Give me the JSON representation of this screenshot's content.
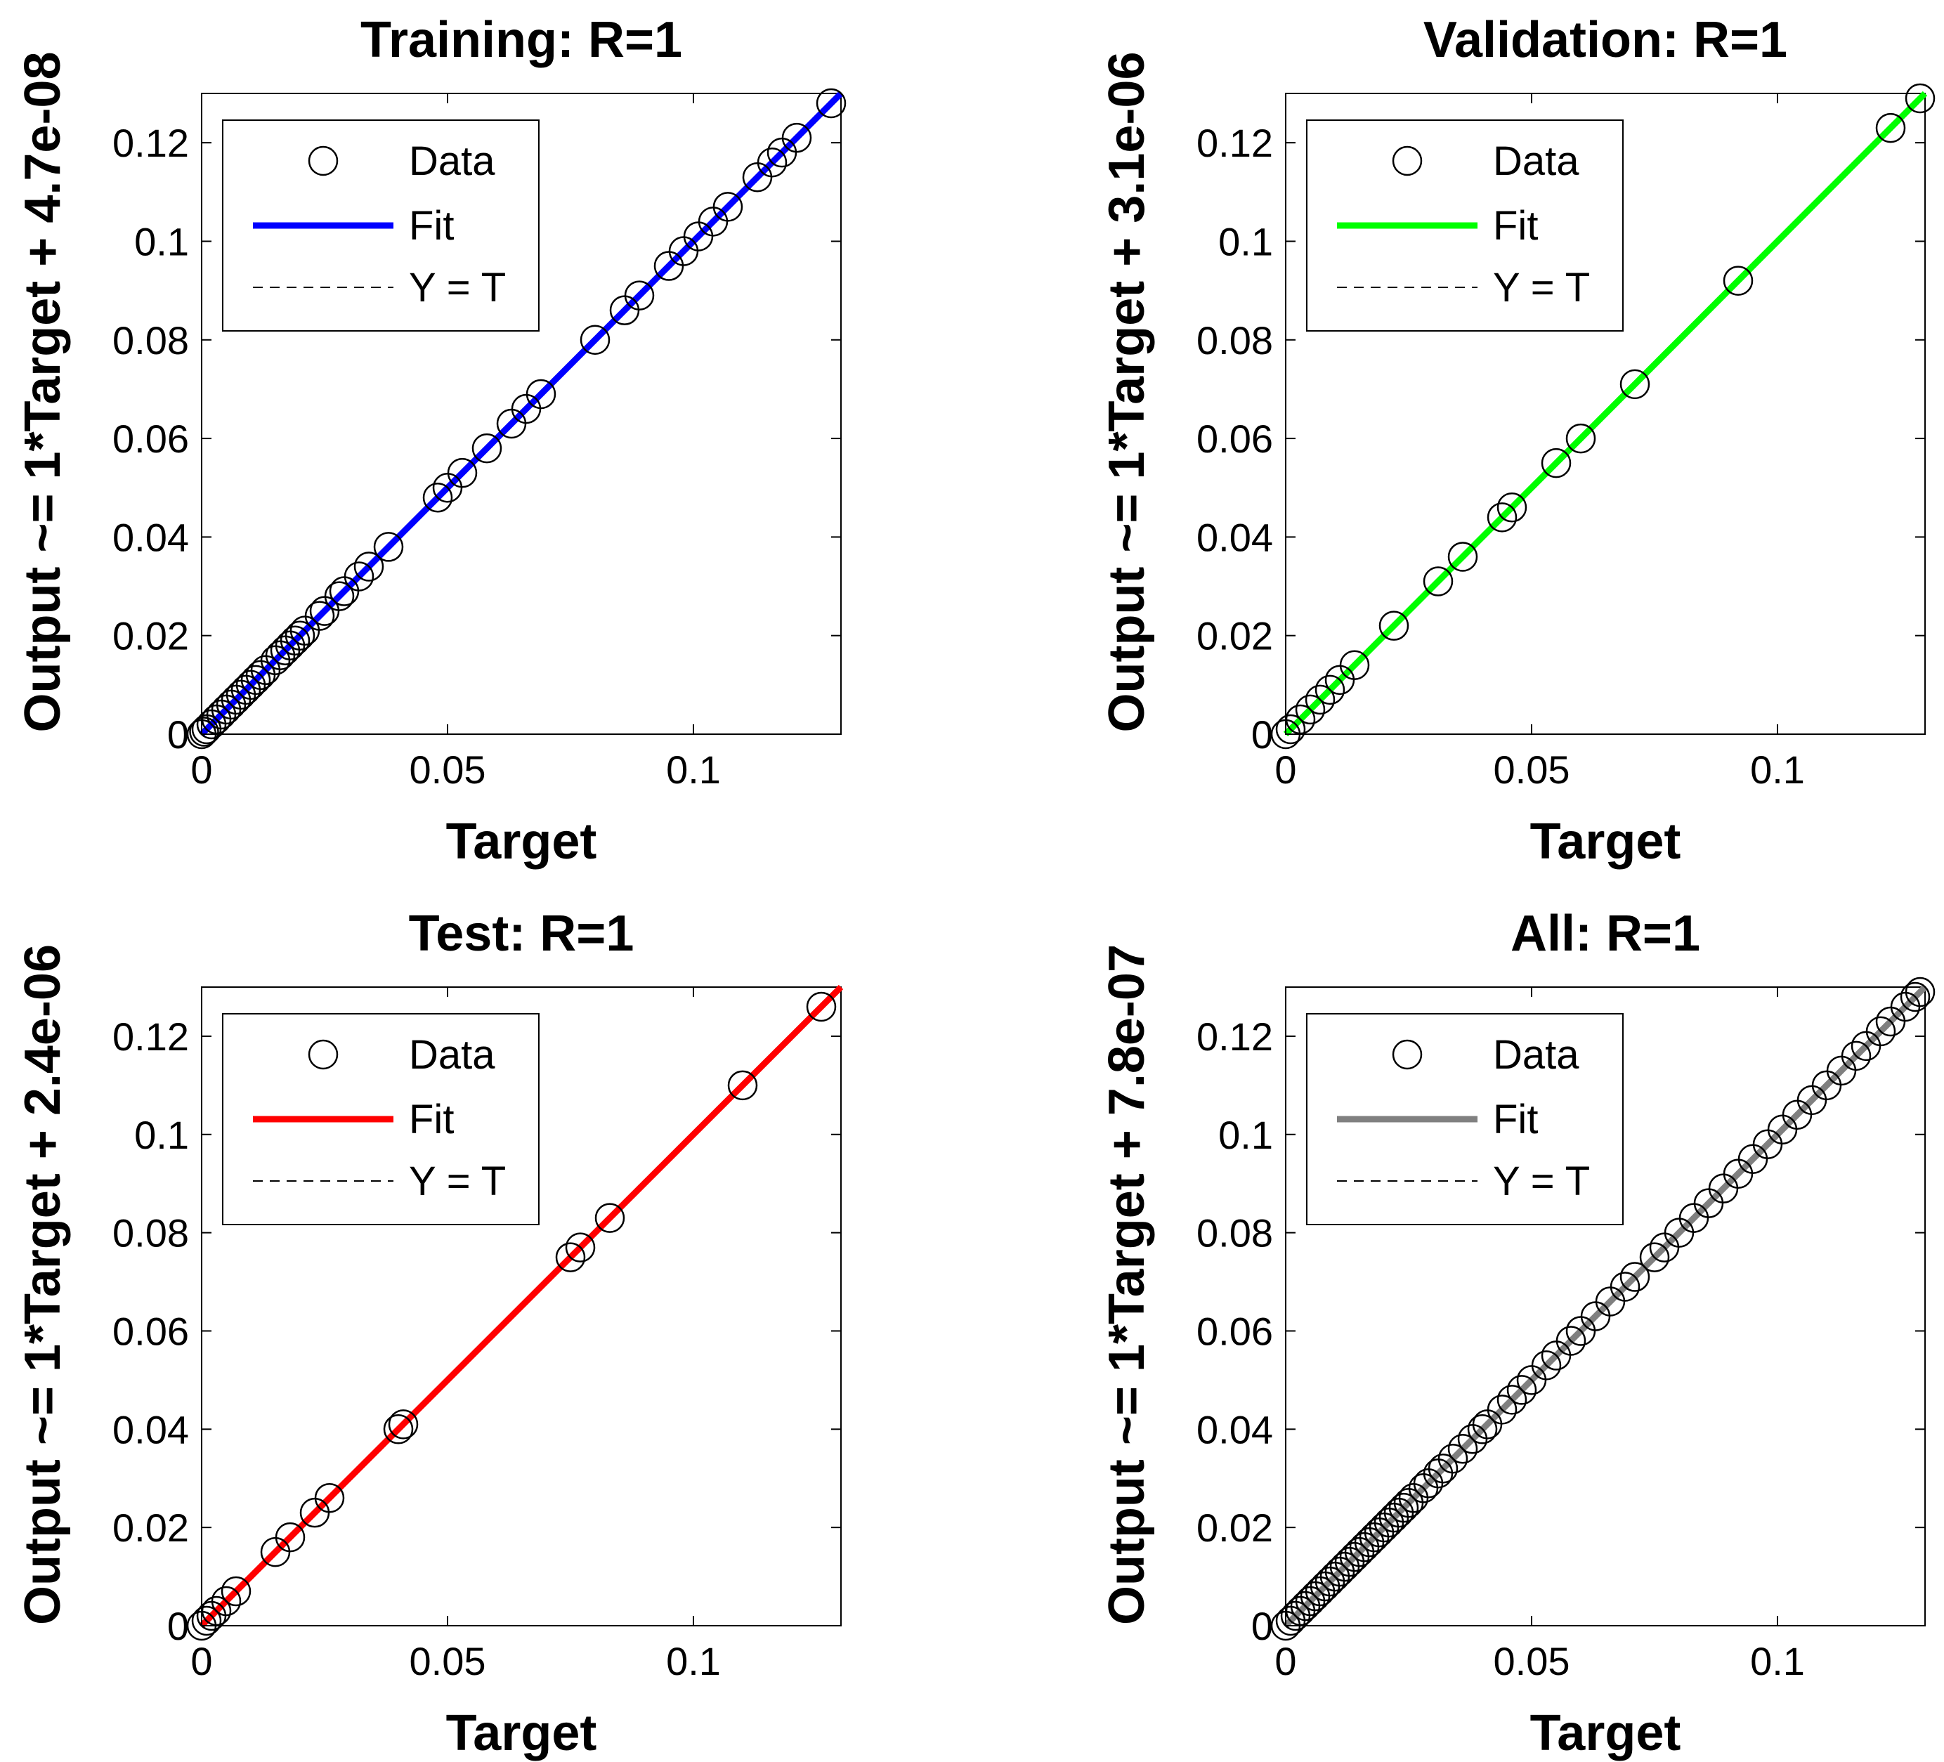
{
  "chart_data": [
    {
      "type": "scatter",
      "title": "Training: R=1",
      "xlabel": "Target",
      "ylabel": "Output ~= 1*Target + 4.7e-08",
      "xlim": [
        0,
        0.13
      ],
      "ylim": [
        0,
        0.13
      ],
      "xticks": [
        "0",
        "0.05",
        "0.1"
      ],
      "yticks": [
        "0",
        "0.02",
        "0.04",
        "0.06",
        "0.08",
        "0.1",
        "0.12"
      ],
      "fit_color": "#0000ff",
      "legend": {
        "position": "top-left",
        "entries": [
          "Data",
          "Fit",
          "Y = T"
        ]
      },
      "grid": false,
      "fit": {
        "slope": 1,
        "intercept": 4.7e-08
      },
      "series": [
        {
          "name": "Data",
          "x": [
            0,
            0.0005,
            0.001,
            0.002,
            0.003,
            0.004,
            0.005,
            0.006,
            0.007,
            0.008,
            0.009,
            0.01,
            0.011,
            0.012,
            0.013,
            0.015,
            0.016,
            0.017,
            0.018,
            0.019,
            0.02,
            0.021,
            0.024,
            0.025,
            0.028,
            0.029,
            0.032,
            0.034,
            0.038,
            0.048,
            0.05,
            0.053,
            0.058,
            0.063,
            0.066,
            0.069,
            0.08,
            0.086,
            0.089,
            0.095,
            0.098,
            0.101,
            0.104,
            0.107,
            0.113,
            0.116,
            0.118,
            0.121,
            0.128
          ],
          "y": [
            0,
            0.0005,
            0.001,
            0.002,
            0.003,
            0.004,
            0.005,
            0.006,
            0.007,
            0.008,
            0.009,
            0.01,
            0.011,
            0.012,
            0.013,
            0.015,
            0.016,
            0.017,
            0.018,
            0.019,
            0.02,
            0.021,
            0.024,
            0.025,
            0.028,
            0.029,
            0.032,
            0.034,
            0.038,
            0.048,
            0.05,
            0.053,
            0.058,
            0.063,
            0.066,
            0.069,
            0.08,
            0.086,
            0.089,
            0.095,
            0.098,
            0.101,
            0.104,
            0.107,
            0.113,
            0.116,
            0.118,
            0.121,
            0.128
          ]
        }
      ]
    },
    {
      "type": "scatter",
      "title": "Validation: R=1",
      "xlabel": "Target",
      "ylabel": "Output ~= 1*Target + 3.1e-06",
      "xlim": [
        0,
        0.13
      ],
      "ylim": [
        0,
        0.13
      ],
      "xticks": [
        "0",
        "0.05",
        "0.1"
      ],
      "yticks": [
        "0",
        "0.02",
        "0.04",
        "0.06",
        "0.08",
        "0.1",
        "0.12"
      ],
      "fit_color": "#00ff00",
      "legend": {
        "position": "top-left",
        "entries": [
          "Data",
          "Fit",
          "Y = T"
        ]
      },
      "grid": false,
      "fit": {
        "slope": 1,
        "intercept": 3.1e-06
      },
      "series": [
        {
          "name": "Data",
          "x": [
            0,
            0.001,
            0.003,
            0.005,
            0.007,
            0.009,
            0.011,
            0.014,
            0.022,
            0.031,
            0.036,
            0.044,
            0.046,
            0.055,
            0.06,
            0.071,
            0.092,
            0.123,
            0.129
          ],
          "y": [
            0,
            0.001,
            0.003,
            0.005,
            0.007,
            0.009,
            0.011,
            0.014,
            0.022,
            0.031,
            0.036,
            0.044,
            0.046,
            0.055,
            0.06,
            0.071,
            0.092,
            0.123,
            0.129
          ]
        }
      ]
    },
    {
      "type": "scatter",
      "title": "Test: R=1",
      "xlabel": "Target",
      "ylabel": "Output ~= 1*Target + 2.4e-06",
      "xlim": [
        0,
        0.13
      ],
      "ylim": [
        0,
        0.13
      ],
      "xticks": [
        "0",
        "0.05",
        "0.1"
      ],
      "yticks": [
        "0",
        "0.02",
        "0.04",
        "0.06",
        "0.08",
        "0.1",
        "0.12"
      ],
      "fit_color": "#ff0000",
      "legend": {
        "position": "top-left",
        "entries": [
          "Data",
          "Fit",
          "Y = T"
        ]
      },
      "grid": false,
      "fit": {
        "slope": 1,
        "intercept": 2.4e-06
      },
      "series": [
        {
          "name": "Data",
          "x": [
            0,
            0.001,
            0.002,
            0.003,
            0.005,
            0.007,
            0.015,
            0.018,
            0.023,
            0.026,
            0.04,
            0.041,
            0.075,
            0.077,
            0.083,
            0.11,
            0.126
          ],
          "y": [
            0,
            0.001,
            0.002,
            0.003,
            0.005,
            0.007,
            0.015,
            0.018,
            0.023,
            0.026,
            0.04,
            0.041,
            0.075,
            0.077,
            0.083,
            0.11,
            0.126
          ]
        }
      ]
    },
    {
      "type": "scatter",
      "title": "All: R=1",
      "xlabel": "Target",
      "ylabel": "Output ~= 1*Target + 7.8e-07",
      "xlim": [
        0,
        0.13
      ],
      "ylim": [
        0,
        0.13
      ],
      "xticks": [
        "0",
        "0.05",
        "0.1"
      ],
      "yticks": [
        "0",
        "0.02",
        "0.04",
        "0.06",
        "0.08",
        "0.1",
        "0.12"
      ],
      "fit_color": "#808080",
      "legend": {
        "position": "top-left",
        "entries": [
          "Data",
          "Fit",
          "Y = T"
        ]
      },
      "grid": false,
      "fit": {
        "slope": 1,
        "intercept": 7.8e-07
      },
      "series": [
        {
          "name": "Data",
          "x": [
            0,
            0.001,
            0.002,
            0.003,
            0.004,
            0.005,
            0.006,
            0.007,
            0.008,
            0.009,
            0.01,
            0.011,
            0.012,
            0.013,
            0.014,
            0.015,
            0.016,
            0.017,
            0.018,
            0.019,
            0.02,
            0.021,
            0.022,
            0.023,
            0.024,
            0.025,
            0.026,
            0.028,
            0.029,
            0.031,
            0.032,
            0.034,
            0.036,
            0.038,
            0.04,
            0.041,
            0.044,
            0.046,
            0.048,
            0.05,
            0.053,
            0.055,
            0.058,
            0.06,
            0.063,
            0.066,
            0.069,
            0.071,
            0.075,
            0.077,
            0.08,
            0.083,
            0.086,
            0.089,
            0.092,
            0.095,
            0.098,
            0.101,
            0.104,
            0.107,
            0.11,
            0.113,
            0.116,
            0.118,
            0.121,
            0.123,
            0.126,
            0.128,
            0.129
          ],
          "y": [
            0,
            0.001,
            0.002,
            0.003,
            0.004,
            0.005,
            0.006,
            0.007,
            0.008,
            0.009,
            0.01,
            0.011,
            0.012,
            0.013,
            0.014,
            0.015,
            0.016,
            0.017,
            0.018,
            0.019,
            0.02,
            0.021,
            0.022,
            0.023,
            0.024,
            0.025,
            0.026,
            0.028,
            0.029,
            0.031,
            0.032,
            0.034,
            0.036,
            0.038,
            0.04,
            0.041,
            0.044,
            0.046,
            0.048,
            0.05,
            0.053,
            0.055,
            0.058,
            0.06,
            0.063,
            0.066,
            0.069,
            0.071,
            0.075,
            0.077,
            0.08,
            0.083,
            0.086,
            0.089,
            0.092,
            0.095,
            0.098,
            0.101,
            0.104,
            0.107,
            0.11,
            0.113,
            0.116,
            0.118,
            0.121,
            0.123,
            0.126,
            0.128,
            0.129
          ]
        }
      ]
    }
  ]
}
